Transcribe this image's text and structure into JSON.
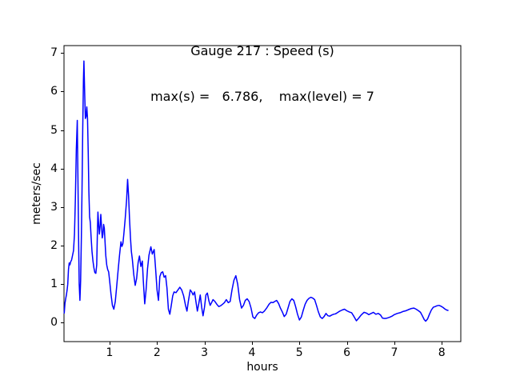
{
  "title": {
    "line1": "Gauge 217 : Speed (s)",
    "line2": "max(s) =   6.786,    max(level) = 7"
  },
  "chart_data": {
    "type": "line",
    "title": "Gauge 217 : Speed (s)",
    "subtitle": "max(s) =   6.786,    max(level) = 7",
    "xlabel": "hours",
    "ylabel": "meters/sec",
    "xlim": [
      0.04,
      8.4
    ],
    "ylim": [
      -0.49,
      7.19
    ],
    "x_ticks": [
      1,
      2,
      3,
      4,
      5,
      6,
      7,
      8
    ],
    "y_ticks": [
      0,
      1,
      2,
      3,
      4,
      5,
      6,
      7
    ],
    "grid": false,
    "legend_position": "none",
    "line_color": "#0000ff",
    "axis_color": "#000000",
    "background_color": "#ffffff",
    "stats": {
      "max_s": 6.786,
      "max_level": 7
    },
    "series": [
      {
        "name": "Speed (s)",
        "points": [
          [
            0.045,
            0.25
          ],
          [
            0.06,
            0.5
          ],
          [
            0.075,
            0.62
          ],
          [
            0.09,
            0.72
          ],
          [
            0.105,
            0.85
          ],
          [
            0.12,
            1.0
          ],
          [
            0.135,
            1.38
          ],
          [
            0.15,
            1.55
          ],
          [
            0.165,
            1.5
          ],
          [
            0.18,
            1.58
          ],
          [
            0.2,
            1.63
          ],
          [
            0.22,
            1.75
          ],
          [
            0.24,
            1.87
          ],
          [
            0.26,
            2.3
          ],
          [
            0.28,
            3.2
          ],
          [
            0.3,
            4.5
          ],
          [
            0.32,
            5.25
          ],
          [
            0.335,
            3.6
          ],
          [
            0.35,
            1.9
          ],
          [
            0.36,
            1.0
          ],
          [
            0.375,
            0.58
          ],
          [
            0.39,
            1.1
          ],
          [
            0.405,
            2.2
          ],
          [
            0.42,
            3.4
          ],
          [
            0.435,
            5.0
          ],
          [
            0.45,
            6.3
          ],
          [
            0.46,
            6.79
          ],
          [
            0.475,
            6.0
          ],
          [
            0.49,
            5.3
          ],
          [
            0.505,
            5.35
          ],
          [
            0.52,
            5.6
          ],
          [
            0.535,
            5.3
          ],
          [
            0.55,
            4.4
          ],
          [
            0.565,
            3.4
          ],
          [
            0.58,
            2.75
          ],
          [
            0.595,
            2.6
          ],
          [
            0.61,
            2.25
          ],
          [
            0.63,
            1.85
          ],
          [
            0.65,
            1.6
          ],
          [
            0.67,
            1.42
          ],
          [
            0.69,
            1.3
          ],
          [
            0.71,
            1.28
          ],
          [
            0.73,
            1.5
          ],
          [
            0.745,
            2.4
          ],
          [
            0.755,
            2.87
          ],
          [
            0.77,
            2.55
          ],
          [
            0.785,
            2.3
          ],
          [
            0.8,
            2.5
          ],
          [
            0.815,
            2.81
          ],
          [
            0.83,
            2.5
          ],
          [
            0.845,
            2.2
          ],
          [
            0.86,
            2.3
          ],
          [
            0.875,
            2.55
          ],
          [
            0.89,
            2.45
          ],
          [
            0.905,
            2.1
          ],
          [
            0.92,
            1.75
          ],
          [
            0.94,
            1.5
          ],
          [
            0.96,
            1.38
          ],
          [
            0.98,
            1.32
          ],
          [
            1.0,
            1.1
          ],
          [
            1.03,
            0.75
          ],
          [
            1.06,
            0.45
          ],
          [
            1.09,
            0.35
          ],
          [
            1.12,
            0.55
          ],
          [
            1.15,
            0.95
          ],
          [
            1.18,
            1.35
          ],
          [
            1.21,
            1.75
          ],
          [
            1.24,
            2.1
          ],
          [
            1.26,
            1.98
          ],
          [
            1.28,
            2.05
          ],
          [
            1.3,
            2.3
          ],
          [
            1.33,
            2.7
          ],
          [
            1.36,
            3.2
          ],
          [
            1.38,
            3.72
          ],
          [
            1.4,
            3.3
          ],
          [
            1.42,
            2.7
          ],
          [
            1.44,
            2.2
          ],
          [
            1.46,
            1.85
          ],
          [
            1.48,
            1.65
          ],
          [
            1.51,
            1.25
          ],
          [
            1.54,
            0.97
          ],
          [
            1.57,
            1.15
          ],
          [
            1.6,
            1.55
          ],
          [
            1.63,
            1.73
          ],
          [
            1.66,
            1.46
          ],
          [
            1.69,
            1.6
          ],
          [
            1.71,
            1.1
          ],
          [
            1.74,
            0.49
          ],
          [
            1.77,
            0.85
          ],
          [
            1.8,
            1.4
          ],
          [
            1.83,
            1.75
          ],
          [
            1.87,
            1.97
          ],
          [
            1.9,
            1.78
          ],
          [
            1.94,
            1.9
          ],
          [
            1.97,
            1.4
          ],
          [
            2.0,
            0.85
          ],
          [
            2.03,
            0.58
          ],
          [
            2.06,
            1.2
          ],
          [
            2.09,
            1.3
          ],
          [
            2.12,
            1.32
          ],
          [
            2.15,
            1.18
          ],
          [
            2.18,
            1.22
          ],
          [
            2.21,
            0.9
          ],
          [
            2.24,
            0.35
          ],
          [
            2.27,
            0.22
          ],
          [
            2.3,
            0.45
          ],
          [
            2.33,
            0.7
          ],
          [
            2.36,
            0.8
          ],
          [
            2.4,
            0.78
          ],
          [
            2.44,
            0.85
          ],
          [
            2.48,
            0.92
          ],
          [
            2.52,
            0.85
          ],
          [
            2.56,
            0.7
          ],
          [
            2.6,
            0.45
          ],
          [
            2.63,
            0.3
          ],
          [
            2.66,
            0.55
          ],
          [
            2.7,
            0.85
          ],
          [
            2.73,
            0.8
          ],
          [
            2.76,
            0.72
          ],
          [
            2.79,
            0.8
          ],
          [
            2.82,
            0.55
          ],
          [
            2.85,
            0.3
          ],
          [
            2.88,
            0.5
          ],
          [
            2.91,
            0.72
          ],
          [
            2.94,
            0.4
          ],
          [
            2.97,
            0.18
          ],
          [
            3.0,
            0.4
          ],
          [
            3.03,
            0.72
          ],
          [
            3.06,
            0.77
          ],
          [
            3.09,
            0.58
          ],
          [
            3.12,
            0.45
          ],
          [
            3.15,
            0.52
          ],
          [
            3.18,
            0.6
          ],
          [
            3.22,
            0.55
          ],
          [
            3.26,
            0.48
          ],
          [
            3.3,
            0.42
          ],
          [
            3.34,
            0.44
          ],
          [
            3.38,
            0.48
          ],
          [
            3.42,
            0.52
          ],
          [
            3.46,
            0.6
          ],
          [
            3.5,
            0.52
          ],
          [
            3.54,
            0.55
          ],
          [
            3.58,
            0.85
          ],
          [
            3.62,
            1.1
          ],
          [
            3.66,
            1.22
          ],
          [
            3.7,
            1.0
          ],
          [
            3.74,
            0.6
          ],
          [
            3.78,
            0.38
          ],
          [
            3.82,
            0.45
          ],
          [
            3.86,
            0.58
          ],
          [
            3.9,
            0.62
          ],
          [
            3.94,
            0.55
          ],
          [
            3.98,
            0.38
          ],
          [
            4.02,
            0.15
          ],
          [
            4.06,
            0.11
          ],
          [
            4.1,
            0.2
          ],
          [
            4.14,
            0.26
          ],
          [
            4.18,
            0.28
          ],
          [
            4.22,
            0.26
          ],
          [
            4.26,
            0.3
          ],
          [
            4.31,
            0.38
          ],
          [
            4.36,
            0.48
          ],
          [
            4.4,
            0.53
          ],
          [
            4.44,
            0.52
          ],
          [
            4.48,
            0.55
          ],
          [
            4.52,
            0.58
          ],
          [
            4.56,
            0.5
          ],
          [
            4.6,
            0.38
          ],
          [
            4.64,
            0.28
          ],
          [
            4.68,
            0.16
          ],
          [
            4.72,
            0.22
          ],
          [
            4.76,
            0.38
          ],
          [
            4.8,
            0.55
          ],
          [
            4.84,
            0.62
          ],
          [
            4.88,
            0.58
          ],
          [
            4.92,
            0.42
          ],
          [
            4.96,
            0.22
          ],
          [
            5.0,
            0.07
          ],
          [
            5.04,
            0.15
          ],
          [
            5.08,
            0.32
          ],
          [
            5.12,
            0.48
          ],
          [
            5.16,
            0.58
          ],
          [
            5.2,
            0.63
          ],
          [
            5.24,
            0.66
          ],
          [
            5.28,
            0.64
          ],
          [
            5.32,
            0.6
          ],
          [
            5.36,
            0.45
          ],
          [
            5.4,
            0.28
          ],
          [
            5.44,
            0.15
          ],
          [
            5.48,
            0.11
          ],
          [
            5.52,
            0.16
          ],
          [
            5.56,
            0.24
          ],
          [
            5.6,
            0.18
          ],
          [
            5.64,
            0.17
          ],
          [
            5.68,
            0.2
          ],
          [
            5.72,
            0.22
          ],
          [
            5.76,
            0.23
          ],
          [
            5.8,
            0.26
          ],
          [
            5.85,
            0.3
          ],
          [
            5.9,
            0.33
          ],
          [
            5.95,
            0.35
          ],
          [
            6.0,
            0.31
          ],
          [
            6.05,
            0.28
          ],
          [
            6.1,
            0.26
          ],
          [
            6.15,
            0.16
          ],
          [
            6.2,
            0.05
          ],
          [
            6.25,
            0.12
          ],
          [
            6.3,
            0.2
          ],
          [
            6.36,
            0.27
          ],
          [
            6.41,
            0.25
          ],
          [
            6.46,
            0.21
          ],
          [
            6.51,
            0.24
          ],
          [
            6.56,
            0.27
          ],
          [
            6.61,
            0.22
          ],
          [
            6.66,
            0.24
          ],
          [
            6.71,
            0.2
          ],
          [
            6.75,
            0.12
          ],
          [
            6.8,
            0.11
          ],
          [
            6.85,
            0.12
          ],
          [
            6.9,
            0.14
          ],
          [
            6.95,
            0.17
          ],
          [
            7.0,
            0.21
          ],
          [
            7.06,
            0.24
          ],
          [
            7.12,
            0.26
          ],
          [
            7.18,
            0.29
          ],
          [
            7.24,
            0.31
          ],
          [
            7.3,
            0.34
          ],
          [
            7.36,
            0.37
          ],
          [
            7.41,
            0.38
          ],
          [
            7.46,
            0.35
          ],
          [
            7.51,
            0.31
          ],
          [
            7.55,
            0.27
          ],
          [
            7.59,
            0.18
          ],
          [
            7.63,
            0.08
          ],
          [
            7.66,
            0.04
          ],
          [
            7.7,
            0.1
          ],
          [
            7.74,
            0.22
          ],
          [
            7.78,
            0.33
          ],
          [
            7.82,
            0.4
          ],
          [
            7.86,
            0.42
          ],
          [
            7.9,
            0.44
          ],
          [
            7.94,
            0.45
          ],
          [
            7.98,
            0.43
          ],
          [
            8.02,
            0.4
          ],
          [
            8.06,
            0.36
          ],
          [
            8.1,
            0.33
          ],
          [
            8.13,
            0.32
          ]
        ]
      }
    ]
  }
}
